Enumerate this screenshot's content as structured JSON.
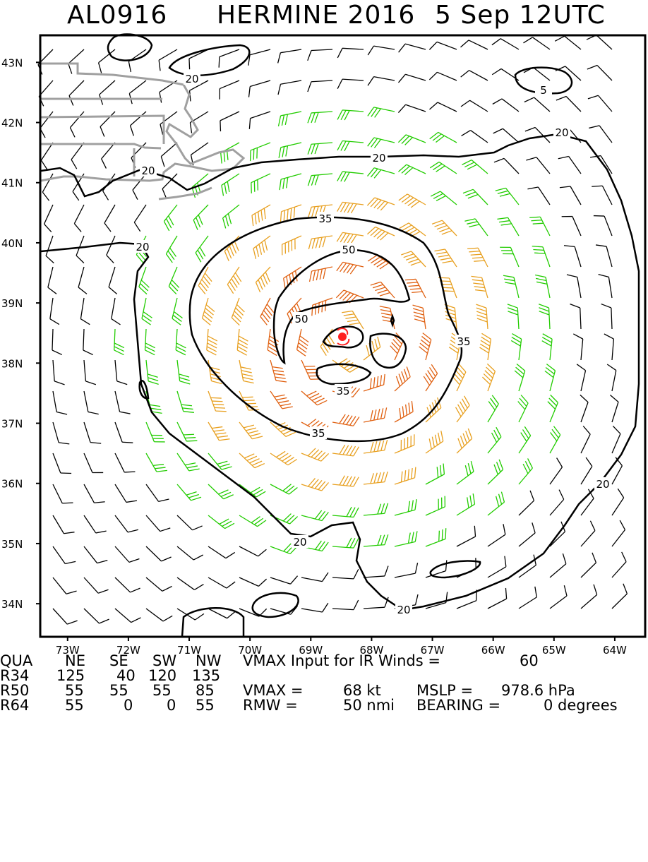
{
  "header": {
    "storm_id": "AL0916",
    "storm_name": "HERMINE 2016",
    "datetime": "5 Sep 12UTC"
  },
  "map": {
    "lat_labels": [
      "43N",
      "42N",
      "41N",
      "40N",
      "39N",
      "38N",
      "37N",
      "36N",
      "35N",
      "34N"
    ],
    "lon_labels": [
      "73W",
      "72W",
      "71W",
      "70W",
      "69W",
      "68W",
      "67W",
      "66W",
      "65W",
      "64W"
    ],
    "contour_labels": {
      "c5": "5",
      "c20": "20",
      "c35": "35",
      "c50": "50"
    },
    "center": {
      "lat": 38.4,
      "lon": -68.4
    },
    "colors": {
      "barb_calm": "#000000",
      "barb_34": "#22cc00",
      "barb_50": "#e8a020",
      "barb_64": "#e06010",
      "center_marker": "#ff2020",
      "coast": "#a0a0a0",
      "contour": "#000000"
    }
  },
  "footer": {
    "header_row": {
      "label": "QUA",
      "ne": "NE",
      "se": "SE",
      "sw": "SW",
      "nw": "NW",
      "note": "VMAX Input for IR Winds =",
      "note_value": "60"
    },
    "r34": {
      "label": "R34",
      "ne": "125",
      "se": "40",
      "sw": "120",
      "nw": "135"
    },
    "r50": {
      "label": "R50",
      "ne": "55",
      "se": "55",
      "sw": "55",
      "nw": "85",
      "vmax_label": "VMAX =",
      "vmax_value": "68 kt",
      "mslp_label": "MSLP =",
      "mslp_value": "978.6 hPa"
    },
    "r64": {
      "label": "R64",
      "ne": "55",
      "se": "0",
      "sw": "0",
      "nw": "55",
      "rmw_label": "RMW =",
      "rmw_value": "50 nmi",
      "bearing_label": "BEARING =",
      "bearing_value": "0 degrees"
    }
  }
}
